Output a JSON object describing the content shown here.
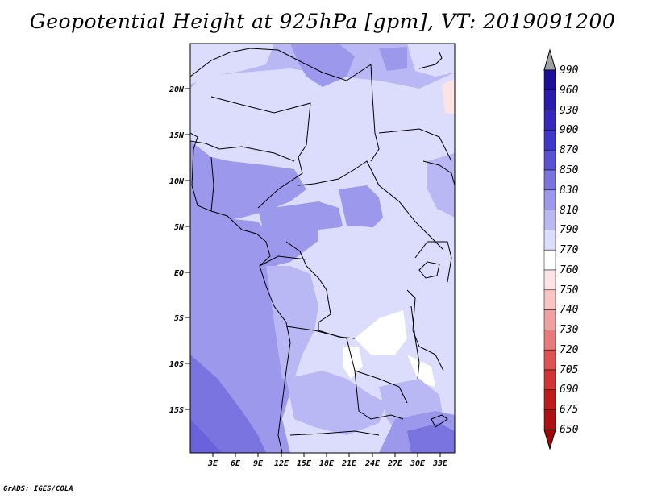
{
  "title": "Geopotential Height at 925hPa [gpm], VT: 2019091200",
  "footer": "GrADS: IGES/COLA",
  "map": {
    "lat_labels": [
      "20N",
      "15N",
      "10N",
      "5N",
      "EQ",
      "5S",
      "10S",
      "15S"
    ],
    "lon_labels": [
      "3E",
      "6E",
      "9E",
      "12E",
      "15E",
      "18E",
      "21E",
      "24E",
      "27E",
      "30E",
      "33E"
    ]
  },
  "colorbar": {
    "levels": [
      "990",
      "960",
      "930",
      "900",
      "870",
      "850",
      "830",
      "810",
      "790",
      "770",
      "760",
      "750",
      "740",
      "730",
      "720",
      "705",
      "690",
      "675",
      "650"
    ],
    "colors": {
      "c990_up": "#a0a0a0",
      "c960": "#1e0e9a",
      "c930": "#2a1cae",
      "c900": "#3428c0",
      "c870": "#4038cc",
      "c850": "#5a52d6",
      "c830": "#7a74e0",
      "c810": "#9c98ec",
      "c790": "#bab8f4",
      "c770": "#dcdcfc",
      "c760": "#ffffff",
      "c750": "#fde4e4",
      "c740": "#f9c4c4",
      "c730": "#f1a0a0",
      "c720": "#e97a7a",
      "c705": "#e05252",
      "c690": "#d23434",
      "c675": "#c01a1a",
      "c650": "#a00808"
    }
  }
}
